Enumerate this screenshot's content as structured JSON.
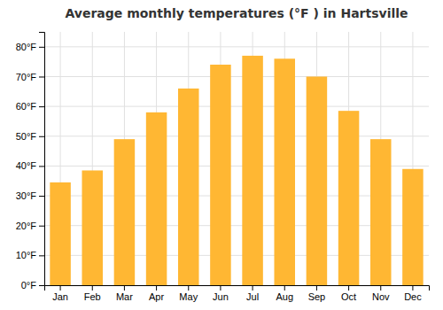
{
  "chart_data": {
    "type": "bar",
    "title": "Average monthly temperatures (°F ) in Hartsville",
    "categories": [
      "Jan",
      "Feb",
      "Mar",
      "Apr",
      "May",
      "Jun",
      "Jul",
      "Aug",
      "Sep",
      "Oct",
      "Nov",
      "Dec"
    ],
    "values": [
      34.5,
      38.5,
      49,
      58,
      66,
      74,
      77,
      76,
      70,
      58.5,
      49,
      39
    ],
    "color": "#FFB733",
    "ylim": [
      0,
      85
    ],
    "yticks": [
      {
        "value": 0,
        "label": "0°F"
      },
      {
        "value": 10,
        "label": "10°F"
      },
      {
        "value": 20,
        "label": "20°F"
      },
      {
        "value": 30,
        "label": "30°F"
      },
      {
        "value": 40,
        "label": "40°F"
      },
      {
        "value": 50,
        "label": "50°F"
      },
      {
        "value": 60,
        "label": "60°F"
      },
      {
        "value": 70,
        "label": "70°F"
      },
      {
        "value": 80,
        "label": "80°F"
      }
    ],
    "grid": true
  }
}
